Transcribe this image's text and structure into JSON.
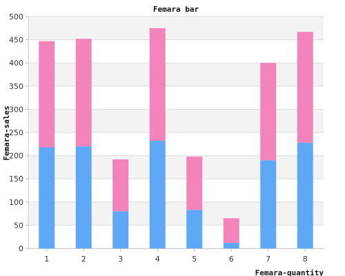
{
  "chart_data": {
    "type": "bar",
    "stacked": true,
    "title": "Femara bar",
    "xlabel": "Femara-quantity",
    "ylabel": "Femara-sales",
    "categories": [
      "1",
      "2",
      "3",
      "4",
      "5",
      "6",
      "7",
      "8"
    ],
    "series": [
      {
        "color": "#5fa8f5",
        "values": [
          218,
          220,
          80,
          232,
          83,
          12,
          190,
          228
        ]
      },
      {
        "color": "#f283bb",
        "values": [
          229,
          232,
          112,
          243,
          115,
          53,
          210,
          239
        ]
      }
    ],
    "ylim": [
      0,
      500
    ],
    "yticks": [
      0,
      50,
      100,
      150,
      200,
      250,
      300,
      350,
      400,
      450,
      500
    ],
    "grid": true,
    "band_colors": [
      "#ffffff",
      "#f3f3f3"
    ],
    "legend": "none"
  }
}
